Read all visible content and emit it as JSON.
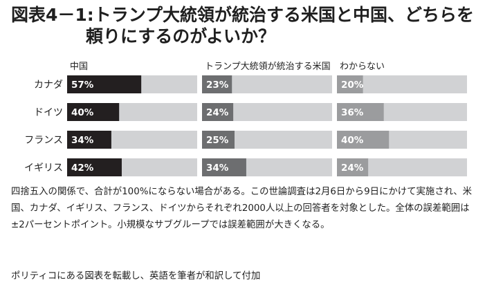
{
  "chart_data": {
    "type": "bar",
    "title_line1": "図表4－1:トランプ大統領が統治する米国と中国、どちらを",
    "title_line2": "頼りにするのがよいか？",
    "categories": [
      "カナダ",
      "ドイツ",
      "フランス",
      "イギリス"
    ],
    "series": [
      {
        "name": "中国",
        "values": [
          57,
          40,
          34,
          42
        ],
        "labels": [
          "57%",
          "40%",
          "34%",
          "42%"
        ],
        "color": "#231f20"
      },
      {
        "name": "トランプ大統領が統治する米国",
        "values": [
          23,
          24,
          25,
          34
        ],
        "labels": [
          "23%",
          "24%",
          "25%",
          "34%"
        ],
        "color": "#6d6e70"
      },
      {
        "name": "わからない",
        "values": [
          20,
          36,
          40,
          24
        ],
        "labels": [
          "20%",
          "36%",
          "40%",
          "24%"
        ],
        "color": "#9b9c9e"
      }
    ],
    "track_color": "#d1d2d4",
    "ylim": [
      0,
      100
    ]
  },
  "notes": {
    "paragraph": "四捨五入の関係で、合計が100%にならない場合がある。この世論調査は2月6日から9日にかけて実施され、米国、カナダ、イギリス、フランス、ドイツからそれぞれ2000人以上の回答者を対象とした。全体の誤差範囲は±2パーセントポイント。小規模なサブグループでは誤差範囲が大きくなる。",
    "credit": "ポリティコにある図表を転載し、英語を筆者が和訳して付加"
  }
}
